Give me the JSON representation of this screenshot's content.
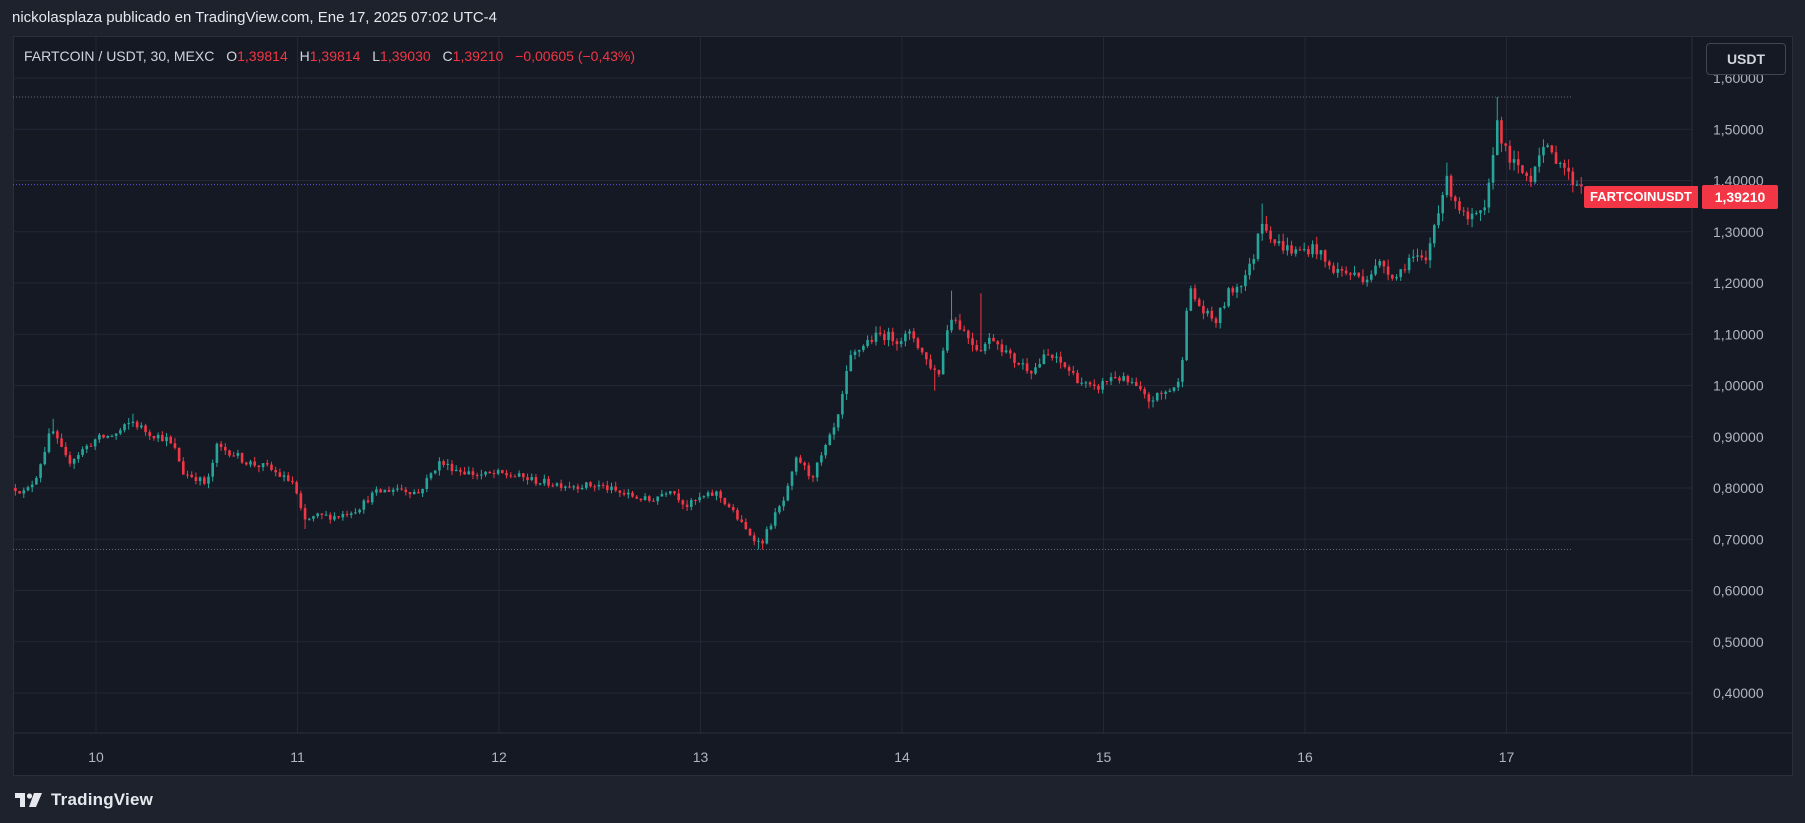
{
  "header": {
    "published_text": "nickolasplaza publicado en TradingView.com, Ene 17, 2025 07:02 UTC-4"
  },
  "legend": {
    "symbol": "FARTCOIN / USDT, 30, MEXC",
    "o_label": "O",
    "o_value": "1,39814",
    "h_label": "H",
    "h_value": "1,39814",
    "l_label": "L",
    "l_value": "1,39030",
    "c_label": "C",
    "c_value": "1,39210",
    "change": "−0,00605 (−0,43%)"
  },
  "price_axis": {
    "currency_button": "USDT",
    "ticks": [
      "1,60000",
      "1,50000",
      "1,40000",
      "1,30000",
      "1,20000",
      "1,10000",
      "1,00000",
      "0,90000",
      "0,80000",
      "0,70000",
      "0,60000",
      "0,50000",
      "0,40000"
    ]
  },
  "last_price_tag": {
    "symbol": "FARTCOINUSDT",
    "price": "1,39210"
  },
  "footer": {
    "brand": "TradingView"
  },
  "colors": {
    "background": "#151924",
    "frame": "#1e222d",
    "up": "#26a69a",
    "down": "#f23645",
    "grid": "#242836",
    "last_price_line": "#6e5ae6",
    "dotted_levels": "#8a8f9c"
  },
  "chart_data": {
    "type": "candlestick",
    "title": "",
    "interval": "30",
    "exchange": "MEXC",
    "x_tick_labels": [
      "10",
      "11",
      "12",
      "13",
      "14",
      "15",
      "16",
      "17"
    ],
    "y_range": [
      0.31,
      1.67
    ],
    "y_ticks": [
      1.6,
      1.5,
      1.4,
      1.3,
      1.2,
      1.1,
      1.0,
      0.9,
      0.8,
      0.7,
      0.6,
      0.5,
      0.4
    ],
    "horizontal_levels": [
      1.563,
      1.392,
      0.68
    ],
    "last_price": 1.3921,
    "close_path": [
      {
        "d": 9.6,
        "v": 0.8
      },
      {
        "d": 9.65,
        "v": 0.79
      },
      {
        "d": 9.7,
        "v": 0.82
      },
      {
        "d": 9.75,
        "v": 0.88
      },
      {
        "d": 9.78,
        "v": 0.915
      },
      {
        "d": 9.82,
        "v": 0.88
      },
      {
        "d": 9.86,
        "v": 0.85
      },
      {
        "d": 9.92,
        "v": 0.87
      },
      {
        "d": 10.0,
        "v": 0.895
      },
      {
        "d": 10.1,
        "v": 0.905
      },
      {
        "d": 10.18,
        "v": 0.93
      },
      {
        "d": 10.25,
        "v": 0.91
      },
      {
        "d": 10.35,
        "v": 0.895
      },
      {
        "d": 10.4,
        "v": 0.87
      },
      {
        "d": 10.43,
        "v": 0.83
      },
      {
        "d": 10.5,
        "v": 0.82
      },
      {
        "d": 10.55,
        "v": 0.805
      },
      {
        "d": 10.6,
        "v": 0.88
      },
      {
        "d": 10.67,
        "v": 0.87
      },
      {
        "d": 10.75,
        "v": 0.85
      },
      {
        "d": 10.85,
        "v": 0.84
      },
      {
        "d": 10.93,
        "v": 0.82
      },
      {
        "d": 10.98,
        "v": 0.81
      },
      {
        "d": 11.0,
        "v": 0.78
      },
      {
        "d": 11.03,
        "v": 0.735
      },
      {
        "d": 11.1,
        "v": 0.745
      },
      {
        "d": 11.2,
        "v": 0.745
      },
      {
        "d": 11.3,
        "v": 0.76
      },
      {
        "d": 11.38,
        "v": 0.79
      },
      {
        "d": 11.5,
        "v": 0.8
      },
      {
        "d": 11.6,
        "v": 0.79
      },
      {
        "d": 11.7,
        "v": 0.85
      },
      {
        "d": 11.8,
        "v": 0.835
      },
      {
        "d": 11.9,
        "v": 0.825
      },
      {
        "d": 12.0,
        "v": 0.828
      },
      {
        "d": 12.1,
        "v": 0.822
      },
      {
        "d": 12.2,
        "v": 0.812
      },
      {
        "d": 12.35,
        "v": 0.805
      },
      {
        "d": 12.5,
        "v": 0.805
      },
      {
        "d": 12.6,
        "v": 0.79
      },
      {
        "d": 12.75,
        "v": 0.775
      },
      {
        "d": 12.85,
        "v": 0.8
      },
      {
        "d": 12.93,
        "v": 0.765
      },
      {
        "d": 13.0,
        "v": 0.78
      },
      {
        "d": 13.08,
        "v": 0.79
      },
      {
        "d": 13.15,
        "v": 0.76
      },
      {
        "d": 13.22,
        "v": 0.72
      },
      {
        "d": 13.3,
        "v": 0.69
      },
      {
        "d": 13.36,
        "v": 0.74
      },
      {
        "d": 13.42,
        "v": 0.78
      },
      {
        "d": 13.48,
        "v": 0.86
      },
      {
        "d": 13.55,
        "v": 0.82
      },
      {
        "d": 13.6,
        "v": 0.86
      },
      {
        "d": 13.68,
        "v": 0.93
      },
      {
        "d": 13.74,
        "v": 1.05
      },
      {
        "d": 13.82,
        "v": 1.085
      },
      {
        "d": 13.9,
        "v": 1.1
      },
      {
        "d": 13.98,
        "v": 1.09
      },
      {
        "d": 14.05,
        "v": 1.1
      },
      {
        "d": 14.12,
        "v": 1.05
      },
      {
        "d": 14.18,
        "v": 1.02
      },
      {
        "d": 14.24,
        "v": 1.14
      },
      {
        "d": 14.3,
        "v": 1.11
      },
      {
        "d": 14.38,
        "v": 1.07
      },
      {
        "d": 14.45,
        "v": 1.095
      },
      {
        "d": 14.55,
        "v": 1.05
      },
      {
        "d": 14.65,
        "v": 1.03
      },
      {
        "d": 14.72,
        "v": 1.06
      },
      {
        "d": 14.8,
        "v": 1.04
      },
      {
        "d": 14.88,
        "v": 1.01
      },
      {
        "d": 14.95,
        "v": 0.99
      },
      {
        "d": 15.05,
        "v": 1.02
      },
      {
        "d": 15.15,
        "v": 1.0
      },
      {
        "d": 15.22,
        "v": 0.97
      },
      {
        "d": 15.3,
        "v": 0.985
      },
      {
        "d": 15.38,
        "v": 1.005
      },
      {
        "d": 15.42,
        "v": 1.19
      },
      {
        "d": 15.5,
        "v": 1.14
      },
      {
        "d": 15.56,
        "v": 1.125
      },
      {
        "d": 15.62,
        "v": 1.18
      },
      {
        "d": 15.68,
        "v": 1.2
      },
      {
        "d": 15.74,
        "v": 1.24
      },
      {
        "d": 15.78,
        "v": 1.33
      },
      {
        "d": 15.85,
        "v": 1.28
      },
      {
        "d": 15.95,
        "v": 1.26
      },
      {
        "d": 16.05,
        "v": 1.27
      },
      {
        "d": 16.12,
        "v": 1.23
      },
      {
        "d": 16.2,
        "v": 1.22
      },
      {
        "d": 16.3,
        "v": 1.21
      },
      {
        "d": 16.38,
        "v": 1.24
      },
      {
        "d": 16.45,
        "v": 1.21
      },
      {
        "d": 16.52,
        "v": 1.25
      },
      {
        "d": 16.6,
        "v": 1.24
      },
      {
        "d": 16.65,
        "v": 1.33
      },
      {
        "d": 16.7,
        "v": 1.4
      },
      {
        "d": 16.75,
        "v": 1.36
      },
      {
        "d": 16.8,
        "v": 1.32
      },
      {
        "d": 16.86,
        "v": 1.33
      },
      {
        "d": 16.9,
        "v": 1.34
      },
      {
        "d": 16.95,
        "v": 1.52
      },
      {
        "d": 17.0,
        "v": 1.45
      },
      {
        "d": 17.06,
        "v": 1.42
      },
      {
        "d": 17.12,
        "v": 1.405
      },
      {
        "d": 17.17,
        "v": 1.47
      },
      {
        "d": 17.22,
        "v": 1.45
      },
      {
        "d": 17.27,
        "v": 1.44
      },
      {
        "d": 17.32,
        "v": 1.4
      },
      {
        "d": 17.38,
        "v": 1.392
      }
    ],
    "spikes": [
      {
        "d": 9.78,
        "h": 0.935
      },
      {
        "d": 10.18,
        "h": 0.945
      },
      {
        "d": 11.03,
        "l": 0.72
      },
      {
        "d": 13.3,
        "l": 0.68
      },
      {
        "d": 14.24,
        "h": 1.185
      },
      {
        "d": 14.4,
        "h": 1.18
      },
      {
        "d": 14.16,
        "l": 0.99
      },
      {
        "d": 15.22,
        "l": 0.955
      },
      {
        "d": 15.78,
        "h": 1.355
      },
      {
        "d": 16.7,
        "h": 1.435
      },
      {
        "d": 16.95,
        "h": 1.563
      }
    ]
  }
}
